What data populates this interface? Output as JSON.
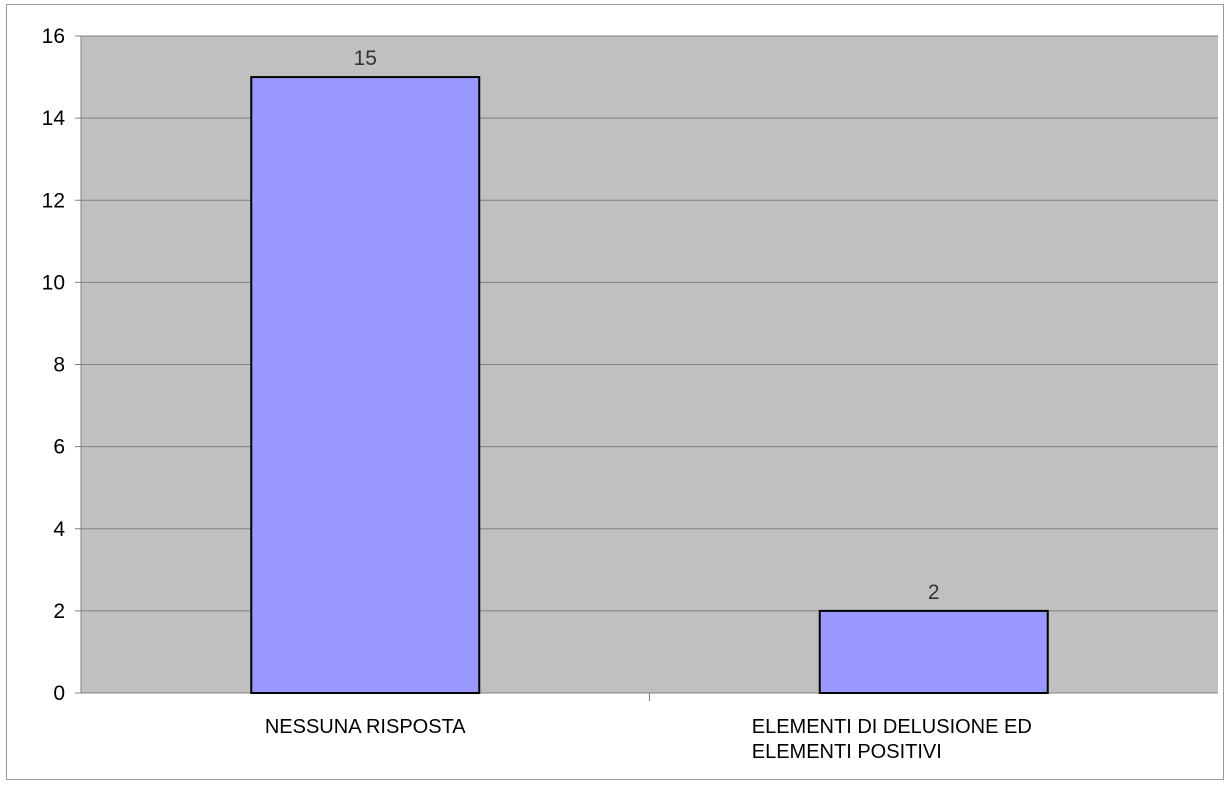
{
  "chart_data": {
    "type": "bar",
    "categories": [
      [
        "NESSUNA RISPOSTA"
      ],
      [
        "ELEMENTI DI DELUSIONE ED",
        "ELEMENTI POSITIVI"
      ]
    ],
    "values": [
      15,
      2
    ],
    "data_labels": [
      "15",
      "2"
    ],
    "ylim": [
      0,
      16
    ],
    "yticks": [
      0,
      2,
      4,
      6,
      8,
      10,
      12,
      14,
      16
    ],
    "grid": true,
    "legend": "none",
    "colors": {
      "plot_background": "#c0c0c0",
      "bar_fill": "#9999ff",
      "bar_stroke": "#000000",
      "gridline": "#808080"
    }
  }
}
